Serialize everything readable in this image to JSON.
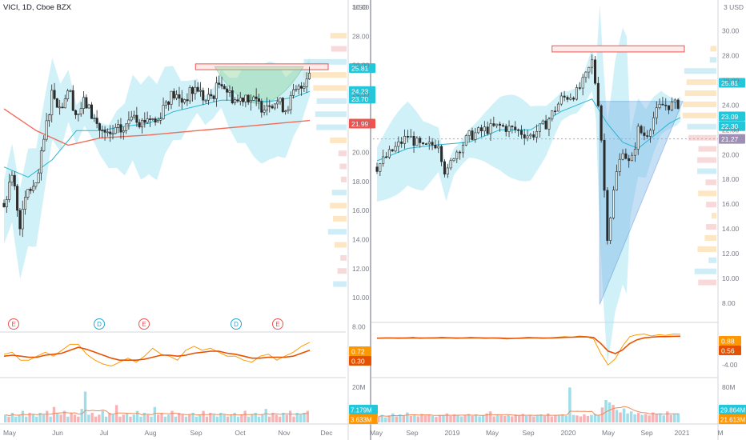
{
  "title": "VICI, 1D, Cboe BZX",
  "currency": "USD",
  "colors": {
    "up": "#26a69a",
    "down": "#ef5350",
    "band_fill": "#a9e6f2",
    "ema_fast": "#29b6d5",
    "ema_slow": "#ef6c5a",
    "macd_line": "#ff9800",
    "signal_line": "#e65100",
    "resistance": "#ef5350",
    "cup_fill": "#8fd6a0",
    "wedge_fill": "#7fb9e8"
  },
  "chart_data": [
    {
      "type": "candlestick",
      "name": "left-price-panel",
      "x_tick_labels": [
        "May",
        "Jun",
        "Jul",
        "Aug",
        "Sep",
        "Oct",
        "Nov",
        "Dec"
      ],
      "y_ticks": [
        8,
        10,
        12,
        14,
        16,
        18,
        20,
        22,
        24,
        26,
        28,
        30
      ],
      "y_tick_labels": [
        "8.00",
        "10.00",
        "12.00",
        "14.00",
        "16.00",
        "18.00",
        "20.00",
        "22.00",
        "24.00",
        "26.00",
        "28.00",
        "30.00"
      ],
      "ylim": [
        7.8,
        30.5
      ],
      "price_labels": [
        {
          "value": 25.81,
          "label": "25.81",
          "color": "#26c6da"
        },
        {
          "value": 24.23,
          "label": "24.23",
          "color": "#26c6da"
        },
        {
          "value": 23.7,
          "label": "23.70",
          "color": "#26c6da"
        },
        {
          "value": 21.99,
          "label": "21.99",
          "color": "#ef5350"
        }
      ],
      "events": [
        "E",
        "D",
        "E",
        "D",
        "E"
      ],
      "close_path": [
        [
          0,
          16.5
        ],
        [
          10,
          18.5
        ],
        [
          20,
          15.0
        ],
        [
          30,
          17.5
        ],
        [
          40,
          17.5
        ],
        [
          50,
          21.0
        ],
        [
          60,
          24.3
        ],
        [
          70,
          23.0
        ],
        [
          80,
          24.5
        ],
        [
          90,
          22.5
        ],
        [
          100,
          23.5
        ],
        [
          110,
          22.5
        ],
        [
          120,
          21.5
        ],
        [
          130,
          21.0
        ],
        [
          140,
          21.5
        ],
        [
          150,
          21.5
        ],
        [
          160,
          23.0
        ],
        [
          170,
          22.0
        ],
        [
          180,
          22.5
        ],
        [
          190,
          22.0
        ],
        [
          200,
          23.5
        ],
        [
          210,
          24.0
        ],
        [
          220,
          23.5
        ],
        [
          230,
          24.0
        ],
        [
          240,
          24.5
        ],
        [
          250,
          23.5
        ],
        [
          260,
          24.0
        ],
        [
          270,
          25.0
        ],
        [
          280,
          24.0
        ],
        [
          290,
          23.5
        ],
        [
          300,
          24.0
        ],
        [
          310,
          23.5
        ],
        [
          320,
          23.2
        ],
        [
          330,
          23.5
        ],
        [
          340,
          23.5
        ],
        [
          350,
          23.0
        ],
        [
          360,
          24.0
        ],
        [
          370,
          24.5
        ],
        [
          380,
          25.8
        ]
      ],
      "ema_slow": [
        [
          0,
          23.0
        ],
        [
          40,
          21.5
        ],
        [
          80,
          20.5
        ],
        [
          120,
          21.0
        ],
        [
          180,
          21.2
        ],
        [
          240,
          21.5
        ],
        [
          300,
          21.8
        ],
        [
          380,
          22.2
        ]
      ],
      "ema_fast": [
        [
          0,
          19.0
        ],
        [
          30,
          18.3
        ],
        [
          60,
          19.5
        ],
        [
          90,
          21.5
        ],
        [
          120,
          21.5
        ],
        [
          150,
          21.8
        ],
        [
          180,
          22.0
        ],
        [
          210,
          22.8
        ],
        [
          240,
          23.2
        ],
        [
          270,
          23.6
        ],
        [
          300,
          23.6
        ],
        [
          330,
          23.5
        ],
        [
          360,
          23.8
        ],
        [
          380,
          24.2
        ]
      ],
      "annotations": [
        {
          "type": "resistance_zone",
          "y_range": [
            25.7,
            26.1
          ]
        },
        {
          "type": "cup_pattern",
          "rim": 25.9,
          "bottom": 22.4
        }
      ]
    },
    {
      "type": "line",
      "name": "left-macd-panel",
      "series": [
        {
          "values": [
            0.1,
            0.2,
            -0.2,
            -0.2,
            0.0,
            0.2,
            0.0,
            0.3,
            0.6,
            0.6,
            0.1,
            -0.2,
            -0.4,
            -0.5,
            -0.3,
            -0.1,
            -0.3,
            0.0,
            0.4,
            0.1,
            0.0,
            -0.2,
            0.3,
            0.5,
            0.3,
            0.4,
            0.2,
            0.0,
            0.0,
            -0.2,
            -0.3,
            0.0,
            0.1,
            -0.2,
            0.0,
            0.2,
            0.5,
            0.7
          ]
        },
        {
          "values": [
            0.0,
            0.05,
            0.0,
            -0.05,
            -0.05,
            0.05,
            0.1,
            0.15,
            0.3,
            0.45,
            0.35,
            0.2,
            0.05,
            -0.1,
            -0.2,
            -0.2,
            -0.2,
            -0.15,
            -0.05,
            0.05,
            0.05,
            0.0,
            0.05,
            0.15,
            0.2,
            0.25,
            0.25,
            0.15,
            0.1,
            0.0,
            -0.1,
            -0.1,
            -0.05,
            -0.05,
            -0.05,
            0.0,
            0.15,
            0.3
          ]
        }
      ],
      "ylim": [
        -1.0,
        1.1
      ],
      "value_labels": [
        {
          "label": "0.72",
          "color": "#ff9800"
        },
        {
          "label": "0.30",
          "color": "#e65100"
        }
      ]
    },
    {
      "type": "bar",
      "name": "left-volume-panel",
      "y_tick_labels": [
        "20M"
      ],
      "ylim": [
        0,
        22
      ],
      "values": [
        4,
        3,
        5,
        3,
        4,
        6,
        3,
        5,
        4,
        3,
        5,
        4,
        6,
        3,
        8,
        5,
        4,
        6,
        3,
        5,
        4,
        3,
        7,
        16,
        4,
        5,
        3,
        4,
        6,
        3,
        5,
        4,
        9,
        3,
        4,
        5,
        3,
        4,
        6,
        3,
        5,
        4,
        3,
        8,
        4,
        5,
        3,
        4,
        6,
        3,
        5,
        4,
        3,
        4,
        5,
        3,
        4,
        6,
        3,
        5,
        4,
        3,
        5,
        4,
        3,
        4,
        5,
        3,
        4,
        6,
        3,
        4,
        5,
        3,
        4,
        7,
        3,
        5,
        4,
        3,
        5,
        4,
        6,
        3,
        5,
        4,
        5,
        6
      ],
      "value_labels": [
        {
          "label": "7.179M",
          "color": "#26c6da"
        },
        {
          "label": "3.633M",
          "color": "#ff9800"
        }
      ]
    },
    {
      "type": "candlestick",
      "name": "right-price-panel",
      "x_tick_labels": [
        "May",
        "Sep",
        "2019",
        "May",
        "Sep",
        "2020",
        "May",
        "Sep",
        "2021",
        "M"
      ],
      "y_ticks": [
        8,
        10,
        12,
        14,
        16,
        18,
        20,
        22,
        24,
        26,
        28,
        30
      ],
      "y_tick_labels": [
        "8.00",
        "10.00",
        "12.00",
        "14.00",
        "16.00",
        "18.00",
        "20.00",
        "22.00",
        "24.00",
        "26.00",
        "28.00",
        "30.00"
      ],
      "y_top_label": "3 USD",
      "ylim": [
        6.5,
        32.5
      ],
      "price_labels": [
        {
          "value": 25.81,
          "label": "25.81",
          "color": "#26c6da"
        },
        {
          "value": 23.09,
          "label": "23.09",
          "color": "#26c6da"
        },
        {
          "value": 22.3,
          "label": "22.30",
          "color": "#26c6da"
        },
        {
          "value": 21.27,
          "label": "21.27",
          "color": "#9e8fb4"
        }
      ],
      "close_path": [
        [
          0,
          19.0
        ],
        [
          20,
          20.3
        ],
        [
          40,
          21.5
        ],
        [
          60,
          20.5
        ],
        [
          80,
          21.0
        ],
        [
          90,
          18.2
        ],
        [
          100,
          20.0
        ],
        [
          120,
          21.5
        ],
        [
          140,
          22.0
        ],
        [
          160,
          22.3
        ],
        [
          180,
          22.0
        ],
        [
          200,
          21.5
        ],
        [
          220,
          22.5
        ],
        [
          240,
          24.5
        ],
        [
          260,
          25.0
        ],
        [
          270,
          26.0
        ],
        [
          280,
          27.5
        ],
        [
          290,
          23.5
        ],
        [
          295,
          18.0
        ],
        [
          300,
          13.5
        ],
        [
          305,
          15.5
        ],
        [
          310,
          18.0
        ],
        [
          320,
          20.5
        ],
        [
          330,
          19.0
        ],
        [
          340,
          22.0
        ],
        [
          350,
          21.5
        ],
        [
          360,
          23.0
        ],
        [
          370,
          24.0
        ],
        [
          380,
          24.0
        ],
        [
          390,
          24.0
        ],
        [
          395,
          24.3
        ]
      ],
      "ema_fast": [
        [
          0,
          19.5
        ],
        [
          40,
          20.5
        ],
        [
          80,
          20.8
        ],
        [
          120,
          21.0
        ],
        [
          160,
          22.0
        ],
        [
          200,
          22.0
        ],
        [
          240,
          23.5
        ],
        [
          280,
          24.5
        ],
        [
          300,
          22.5
        ],
        [
          320,
          21.0
        ],
        [
          340,
          20.5
        ],
        [
          360,
          21.5
        ],
        [
          380,
          22.5
        ],
        [
          395,
          23.0
        ]
      ],
      "annotations": [
        {
          "type": "resistance_zone",
          "y_range": [
            28.3,
            28.8
          ]
        },
        {
          "type": "wedge_pattern",
          "top": 24.3,
          "bottom": 7.9
        },
        {
          "type": "dashed_level",
          "value": 21.27
        }
      ]
    },
    {
      "type": "line",
      "name": "right-macd-panel",
      "series": [
        {
          "values": [
            0.2,
            0.3,
            0.3,
            0.2,
            0.3,
            0.4,
            0.2,
            0.3,
            0.3,
            0.4,
            0.3,
            0.2,
            0.3,
            0.4,
            0.3,
            0.2,
            0.3,
            0.2,
            0.1,
            0.2,
            0.3,
            0.4,
            0.3,
            0.2,
            0.3,
            0.4,
            0.5,
            0.4,
            0.6,
            0.5,
            0.1,
            -2.2,
            -4.0,
            -3.0,
            -1.0,
            0.5,
            0.8,
            0.9,
            0.6,
            0.8,
            0.7,
            0.9,
            0.88
          ]
        },
        {
          "values": [
            0.25,
            0.28,
            0.28,
            0.26,
            0.27,
            0.3,
            0.28,
            0.28,
            0.29,
            0.31,
            0.3,
            0.28,
            0.28,
            0.3,
            0.3,
            0.28,
            0.28,
            0.26,
            0.22,
            0.22,
            0.25,
            0.3,
            0.3,
            0.28,
            0.28,
            0.32,
            0.38,
            0.4,
            0.45,
            0.45,
            0.35,
            -0.6,
            -1.8,
            -2.2,
            -1.6,
            -0.6,
            0.0,
            0.3,
            0.4,
            0.5,
            0.5,
            0.55,
            0.56
          ]
        }
      ],
      "ylim": [
        -5.5,
        2.5
      ],
      "y_tick_labels": [
        "-4.00"
      ],
      "value_labels": [
        {
          "label": "0.88",
          "color": "#ff9800"
        },
        {
          "label": "0.56",
          "color": "#e65100"
        }
      ]
    },
    {
      "type": "bar",
      "name": "right-volume-panel",
      "y_tick_labels": [
        "80M"
      ],
      "ylim": [
        0,
        85
      ],
      "values": [
        12,
        15,
        10,
        14,
        18,
        12,
        16,
        14,
        20,
        13,
        15,
        12,
        17,
        14,
        16,
        13,
        11,
        15,
        14,
        18,
        13,
        16,
        14,
        12,
        15,
        17,
        13,
        16,
        12,
        14,
        18,
        22,
        12,
        16,
        14,
        13,
        15,
        12,
        16,
        14,
        17,
        13,
        15,
        12,
        14,
        16,
        13,
        18,
        12,
        15,
        14,
        16,
        13,
        70,
        15,
        14,
        12,
        16,
        13,
        15,
        17,
        14,
        30,
        45,
        40,
        35,
        25,
        20,
        28,
        18,
        22,
        16,
        19,
        15,
        17,
        14,
        20,
        16,
        18,
        14,
        22,
        15,
        16,
        18
      ],
      "value_labels": [
        {
          "label": "29.864M",
          "color": "#26c6da"
        },
        {
          "label": "21.613M",
          "color": "#ff9800"
        }
      ]
    }
  ]
}
